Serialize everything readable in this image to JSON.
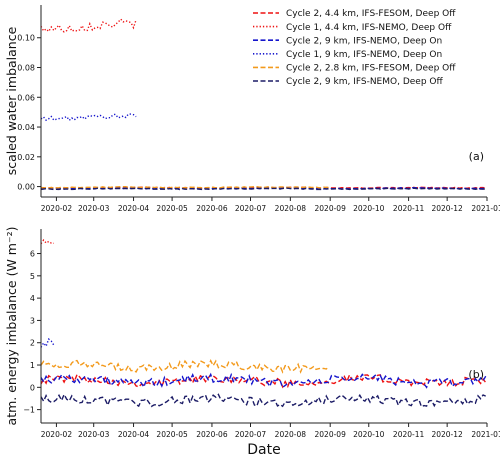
{
  "chart_data": [
    {
      "type": "line",
      "panel_label": "(a)",
      "ylabel": "scaled water imbalance",
      "xlim": [
        "2020-01-20",
        "2021-01-01"
      ],
      "ylim": [
        -0.007,
        0.122
      ],
      "yticks": [
        0.0,
        0.02,
        0.04,
        0.06,
        0.08,
        0.1
      ],
      "ytick_labels": [
        "0.00",
        "0.02",
        "0.04",
        "0.06",
        "0.08",
        "0.10"
      ],
      "xticks": [
        "2020-02-01",
        "2020-03-01",
        "2020-04-01",
        "2020-05-01",
        "2020-06-01",
        "2020-07-01",
        "2020-08-01",
        "2020-09-01",
        "2020-10-01",
        "2020-11-01",
        "2020-12-01",
        "2021-01-01"
      ],
      "xtick_labels": [
        "2020-02",
        "2020-03",
        "2020-04",
        "2020-05",
        "2020-06",
        "2020-07",
        "2020-08",
        "2020-09",
        "2020-10",
        "2020-11",
        "2020-12",
        "2021-01"
      ],
      "series": [
        {
          "name": "Cycle 2, 4.4 km, IFS-FESOM, Deep Off",
          "color": "#ee1111",
          "dash": "dashed",
          "start": "2020-01-20",
          "end": "2021-01-01",
          "level": -0.0008,
          "amp": 0.0003
        },
        {
          "name": "Cycle 1, 4.4 km, IFS-NEMO, Deep Off",
          "color": "#ee1111",
          "dash": "dotted",
          "start": "2020-01-20",
          "end": "2020-04-03",
          "level": 0.108,
          "amp": 0.003
        },
        {
          "name": "Cycle 2, 9 km, IFS-NEMO, Deep On",
          "color": "#1515cc",
          "dash": "dashed",
          "start": "2020-01-20",
          "end": "2021-01-01",
          "level": -0.0012,
          "amp": 0.0003
        },
        {
          "name": "Cycle 1, 9 km, IFS-NEMO, Deep On",
          "color": "#1515cc",
          "dash": "dotted",
          "start": "2020-01-20",
          "end": "2020-04-03",
          "level": 0.0465,
          "amp": 0.0015
        },
        {
          "name": "Cycle 2, 2.8 km, IFS-FESOM, Deep Off",
          "color": "#f39a1c",
          "dash": "dashed",
          "start": "2020-01-20",
          "end": "2020-09-01",
          "level": -0.0005,
          "amp": 0.0003
        },
        {
          "name": "Cycle 2, 9 km, IFS-NEMO, Deep Off",
          "color": "#1c1c66",
          "dash": "dashed",
          "start": "2020-01-20",
          "end": "2021-01-01",
          "level": -0.0015,
          "amp": 0.0003
        }
      ]
    },
    {
      "type": "line",
      "panel_label": "(b)",
      "ylabel": "atm. energy imbalance (W m⁻²)",
      "xlabel": "Date",
      "xlim": [
        "2020-01-20",
        "2021-01-01"
      ],
      "ylim": [
        -1.6,
        7.1
      ],
      "yticks": [
        -1,
        0,
        1,
        2,
        3,
        4,
        5,
        6
      ],
      "ytick_labels": [
        "−1",
        "0",
        "1",
        "2",
        "3",
        "4",
        "5",
        "6"
      ],
      "xticks": [
        "2020-02-01",
        "2020-03-01",
        "2020-04-01",
        "2020-05-01",
        "2020-06-01",
        "2020-07-01",
        "2020-08-01",
        "2020-09-01",
        "2020-10-01",
        "2020-11-01",
        "2020-12-01",
        "2021-01-01"
      ],
      "xtick_labels": [
        "2020-02",
        "2020-03",
        "2020-04",
        "2020-05",
        "2020-06",
        "2020-07",
        "2020-08",
        "2020-09",
        "2020-10",
        "2020-11",
        "2020-12",
        "2021-01"
      ],
      "series": [
        {
          "name": "Cycle 2, 4.4 km, IFS-FESOM, Deep Off",
          "color": "#ee1111",
          "dash": "dashed",
          "start": "2020-01-20",
          "end": "2021-01-01",
          "level": 0.3,
          "amp": 0.18
        },
        {
          "name": "Cycle 1, 4.4 km, IFS-NEMO, Deep Off",
          "color": "#ee1111",
          "dash": "dotted",
          "start": "2020-01-20",
          "end": "2020-01-31",
          "level": 6.45,
          "amp": 0.15
        },
        {
          "name": "Cycle 2, 9 km, IFS-NEMO, Deep On",
          "color": "#1515cc",
          "dash": "dashed",
          "start": "2020-01-20",
          "end": "2021-01-01",
          "level": 0.3,
          "amp": 0.2
        },
        {
          "name": "Cycle 1, 9 km, IFS-NEMO, Deep On",
          "color": "#1515cc",
          "dash": "dotted",
          "start": "2020-01-20",
          "end": "2020-01-31",
          "level": 1.9,
          "amp": 0.2
        },
        {
          "name": "Cycle 2, 2.8 km, IFS-FESOM, Deep Off",
          "color": "#f39a1c",
          "dash": "dashed",
          "start": "2020-01-20",
          "end": "2020-09-01",
          "level": 0.95,
          "amp": 0.18
        },
        {
          "name": "Cycle 2, 9 km, IFS-NEMO, Deep Off",
          "color": "#1c1c66",
          "dash": "dashed",
          "start": "2020-01-20",
          "end": "2021-01-01",
          "level": -0.6,
          "amp": 0.18
        }
      ]
    }
  ],
  "legend": {
    "placement": "top-right",
    "entries": [
      {
        "label": "Cycle 2, 4.4 km, IFS-FESOM, Deep Off",
        "color": "#ee1111",
        "dash": "dashed"
      },
      {
        "label": "Cycle 1, 4.4 km, IFS-NEMO, Deep Off",
        "color": "#ee1111",
        "dash": "dotted"
      },
      {
        "label": "Cycle 2, 9 km, IFS-NEMO, Deep On",
        "color": "#1515cc",
        "dash": "dashed"
      },
      {
        "label": "Cycle 1, 9 km, IFS-NEMO, Deep On",
        "color": "#1515cc",
        "dash": "dotted"
      },
      {
        "label": "Cycle 2, 2.8 km, IFS-FESOM, Deep Off",
        "color": "#f39a1c",
        "dash": "dashed"
      },
      {
        "label": "Cycle 2, 9 km, IFS-NEMO, Deep Off",
        "color": "#1c1c66",
        "dash": "dashed"
      }
    ]
  }
}
